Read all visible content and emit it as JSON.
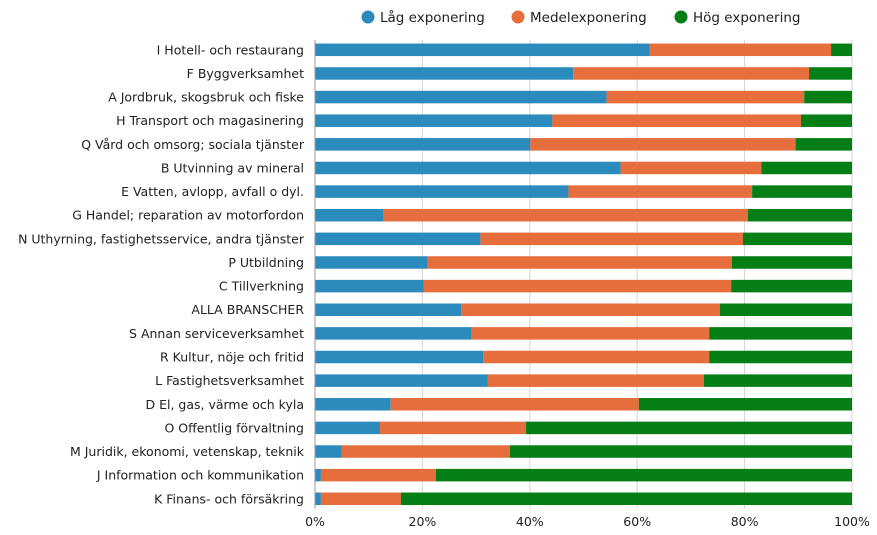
{
  "chart_data": {
    "type": "bar",
    "orientation": "horizontal",
    "stacked": "percent",
    "title": "",
    "xlabel": "",
    "ylabel": "",
    "xlim": [
      0,
      100
    ],
    "grid": true,
    "legend_position": "top-right",
    "x_ticks": [
      "0%",
      "20%",
      "40%",
      "60%",
      "80%",
      "100%"
    ],
    "x_tick_values": [
      0,
      20,
      40,
      60,
      80,
      100
    ],
    "categories": [
      "I Hotell- och restaurang",
      "F Byggverksamhet",
      "A Jordbruk, skogsbruk och fiske",
      "H Transport och magasinering",
      "Q Vård och omsorg; sociala tjänster",
      "B Utvinning av mineral",
      "E Vatten, avlopp, avfall o dyl.",
      "G Handel; reparation av motorfordon",
      "N Uthyrning, fastighetsservice, andra tjänster",
      "P Utbildning",
      "C Tillverkning",
      "ALLA BRANSCHER",
      "S Annan serviceverksamhet",
      "R Kultur, nöje och fritid",
      "L Fastighetsverksamhet",
      "D El, gas, värme och kyla",
      "O Offentlig förvaltning",
      "M Juridik, ekonomi, vetenskap, teknik",
      "J Information och kommunikation",
      "K Finans- och försäkring"
    ],
    "series": [
      {
        "name": "Låg exponering",
        "color": "#2b8bbd",
        "values": [
          62.3,
          48.1,
          54.3,
          44.2,
          40.1,
          56.9,
          47.2,
          12.8,
          30.8,
          21.0,
          20.2,
          27.2,
          29.2,
          31.3,
          32.2,
          14.1,
          12.1,
          5.0,
          1.1,
          1.1
        ]
      },
      {
        "name": "Medelexponering",
        "color": "#e66d3c",
        "values": [
          33.8,
          43.9,
          36.8,
          46.3,
          49.4,
          26.2,
          34.2,
          67.8,
          48.9,
          56.6,
          57.3,
          48.2,
          44.2,
          42.1,
          40.2,
          46.2,
          27.2,
          31.3,
          21.4,
          14.9
        ]
      },
      {
        "name": "Hög exponering",
        "color": "#057f15",
        "values": [
          3.9,
          8.0,
          8.9,
          9.5,
          10.5,
          16.9,
          18.6,
          19.4,
          20.3,
          22.4,
          22.5,
          24.6,
          26.6,
          26.6,
          27.6,
          39.7,
          60.7,
          63.7,
          77.5,
          84.0
        ]
      }
    ]
  }
}
